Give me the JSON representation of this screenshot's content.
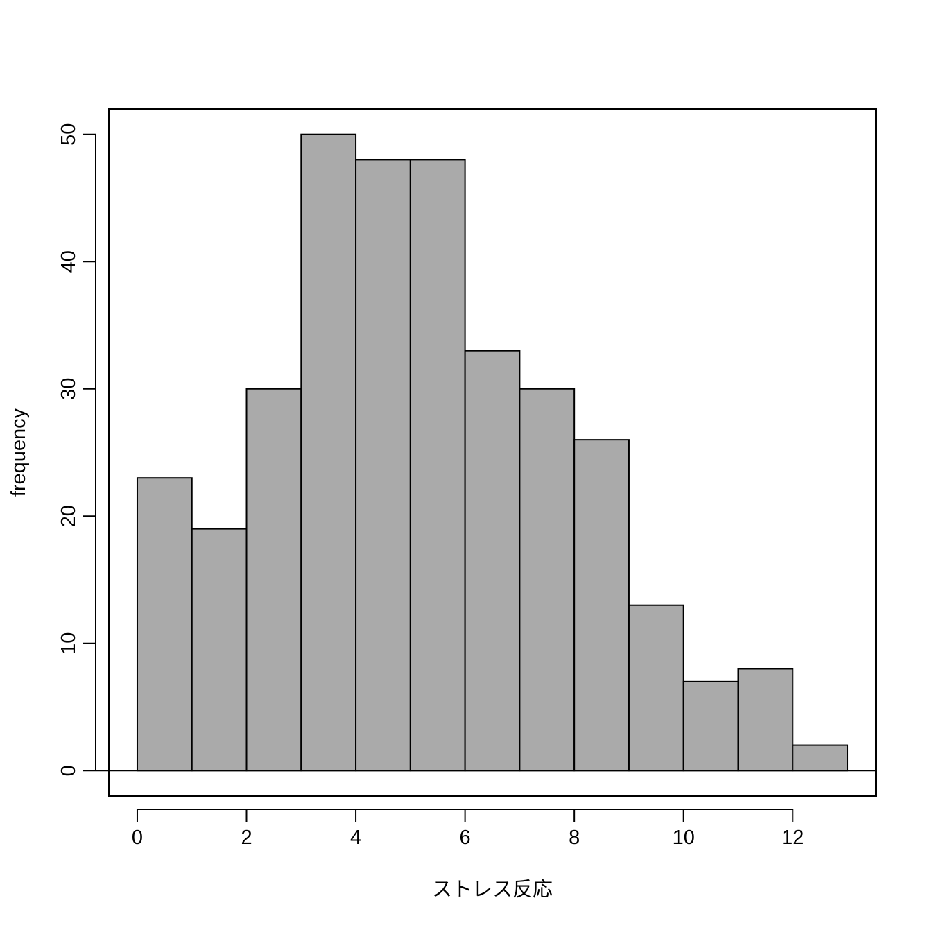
{
  "chart_data": {
    "type": "bar",
    "subtype": "histogram",
    "title": "",
    "xlabel": "ストレス反応",
    "ylabel": "frequency",
    "bins": [
      {
        "start": 0,
        "end": 1,
        "count": 23
      },
      {
        "start": 1,
        "end": 2,
        "count": 19
      },
      {
        "start": 2,
        "end": 3,
        "count": 30
      },
      {
        "start": 3,
        "end": 4,
        "count": 50
      },
      {
        "start": 4,
        "end": 5,
        "count": 48
      },
      {
        "start": 5,
        "end": 6,
        "count": 48
      },
      {
        "start": 6,
        "end": 7,
        "count": 33
      },
      {
        "start": 7,
        "end": 8,
        "count": 30
      },
      {
        "start": 8,
        "end": 9,
        "count": 26
      },
      {
        "start": 9,
        "end": 10,
        "count": 13
      },
      {
        "start": 10,
        "end": 11,
        "count": 7
      },
      {
        "start": 11,
        "end": 12,
        "count": 8
      },
      {
        "start": 12,
        "end": 13,
        "count": 2
      }
    ],
    "x_ticks": [
      0,
      2,
      4,
      6,
      8,
      10,
      12
    ],
    "y_ticks": [
      0,
      10,
      20,
      30,
      40,
      50
    ],
    "xlim": [
      -0.52,
      13.52
    ],
    "ylim": [
      -2,
      52
    ],
    "grid": false,
    "legend": "none",
    "colors": {
      "bar_fill": "#aaaaaa",
      "bar_stroke": "#000000",
      "axis": "#000000",
      "background": "#ffffff"
    }
  }
}
